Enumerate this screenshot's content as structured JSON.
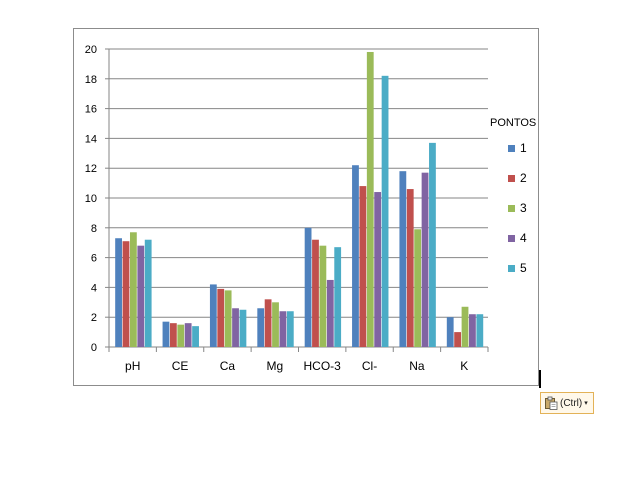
{
  "chart_data": {
    "type": "bar",
    "categories": [
      "pH",
      "CE",
      "Ca",
      "Mg",
      "HCO-3",
      "Cl-",
      "Na",
      "K"
    ],
    "series": [
      {
        "name": "1",
        "color": "#4f81bd",
        "values": [
          7.3,
          1.7,
          4.2,
          2.6,
          8.0,
          12.2,
          11.8,
          2.0
        ]
      },
      {
        "name": "2",
        "color": "#c0504d",
        "values": [
          7.1,
          1.6,
          3.9,
          3.2,
          7.2,
          10.8,
          10.6,
          1.0
        ]
      },
      {
        "name": "3",
        "color": "#9bbb59",
        "values": [
          7.7,
          1.5,
          3.8,
          3.0,
          6.8,
          19.8,
          7.9,
          2.7
        ]
      },
      {
        "name": "4",
        "color": "#8064a2",
        "values": [
          6.8,
          1.6,
          2.6,
          2.4,
          4.5,
          10.4,
          11.7,
          2.2
        ]
      },
      {
        "name": "5",
        "color": "#4bacc6",
        "values": [
          7.2,
          1.4,
          2.5,
          2.4,
          6.7,
          18.2,
          13.7,
          2.2
        ]
      }
    ],
    "ylim": [
      0,
      20
    ],
    "yticks": [
      0,
      2,
      4,
      6,
      8,
      10,
      12,
      14,
      16,
      18,
      20
    ],
    "legend_title": "PONTOS",
    "legend_position": "right",
    "grid": true
  },
  "paste_options": {
    "label": "(Ctrl)",
    "caret": "▾",
    "icon": "clipboard-icon"
  }
}
